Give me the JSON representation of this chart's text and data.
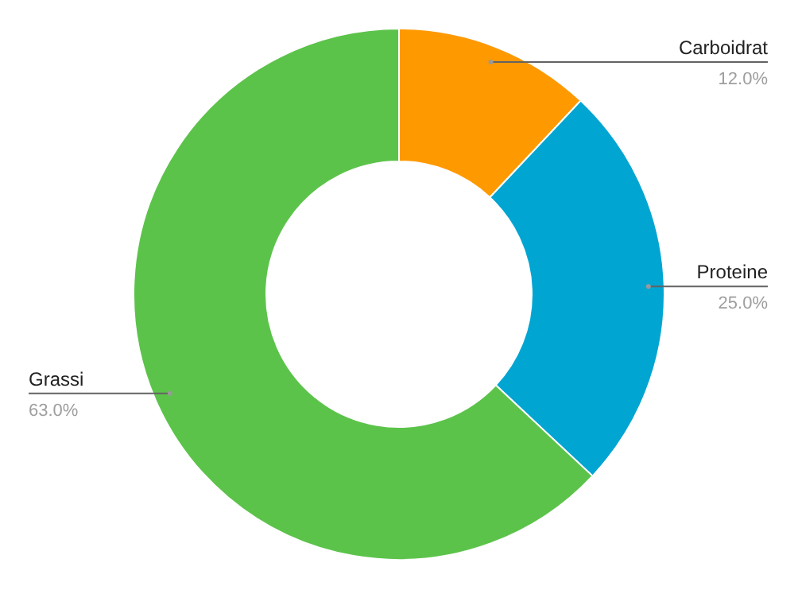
{
  "chart_data": {
    "type": "donut",
    "categories": [
      "Carboidrat",
      "Proteine",
      "Grassi"
    ],
    "values": [
      12,
      25,
      63
    ],
    "colors": [
      "#ff9900",
      "#00a5d2",
      "#5cc34a"
    ],
    "value_labels": [
      "12.0%",
      "25.0%",
      "63.0%"
    ],
    "legend": false
  }
}
